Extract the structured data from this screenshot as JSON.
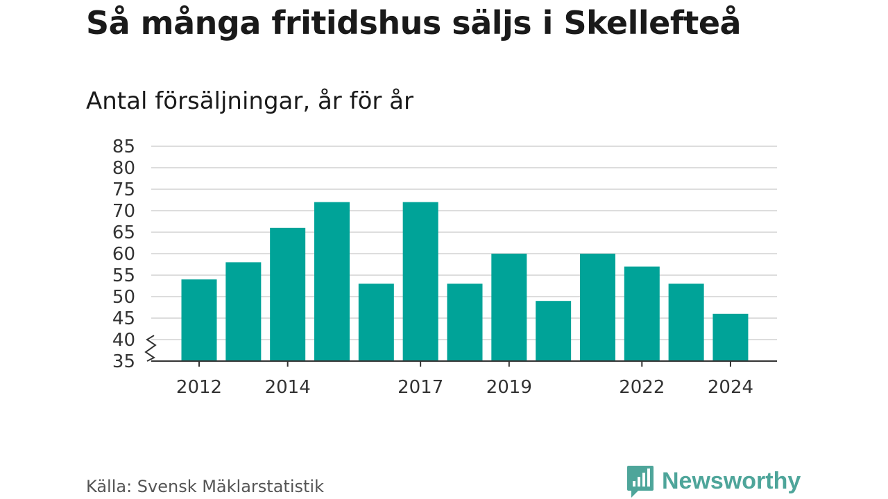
{
  "title": "Så många fritidshus säljs i Skellefteå",
  "subtitle": "Antal försäljningar, år för år",
  "source": "Källa: Svensk Mäklarstatistik",
  "brand": {
    "name": "Newsworthy",
    "color": "#4ea59a"
  },
  "colors": {
    "bar": "#00a398",
    "grid": "#dddddd",
    "axis": "#333333"
  },
  "chart_data": {
    "type": "bar",
    "categories": [
      "2012",
      "2013",
      "2014",
      "2015",
      "2016",
      "2017",
      "2018",
      "2019",
      "2020",
      "2021",
      "2022",
      "2023",
      "2024"
    ],
    "values": [
      54,
      58,
      66,
      72,
      53,
      72,
      53,
      60,
      49,
      60,
      57,
      53,
      46
    ],
    "x_tick_labels": [
      "2012",
      "2014",
      "2017",
      "2019",
      "2022",
      "2024"
    ],
    "y_ticks": [
      35,
      40,
      45,
      50,
      55,
      60,
      65,
      70,
      75,
      80,
      85
    ],
    "ylim": [
      35,
      85
    ],
    "axis_break": true,
    "grid": true,
    "legend": "none"
  }
}
